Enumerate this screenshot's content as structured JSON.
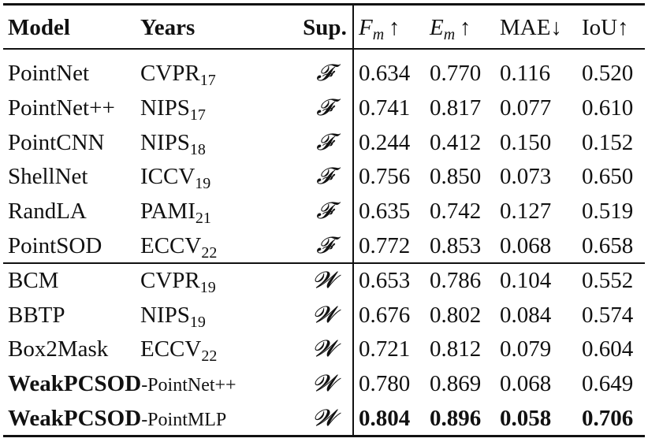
{
  "table": {
    "header": [
      "Model",
      "Years",
      "Sup.",
      {
        "var": "F",
        "sub": "m",
        "arrow": "↑"
      },
      {
        "var": "E",
        "sub": "m",
        "arrow": "↑"
      },
      "MAE↓",
      "IoU↑"
    ],
    "groups": [
      {
        "rows": [
          {
            "model": "PointNet",
            "years": {
              "venue": "CVPR",
              "year": "17"
            },
            "sup": "𝓕",
            "values": [
              "0.634",
              "0.770",
              "0.116",
              "0.520"
            ]
          },
          {
            "model": "PointNet++",
            "years": {
              "venue": "NIPS",
              "year": "17"
            },
            "sup": "𝓕",
            "values": [
              "0.741",
              "0.817",
              "0.077",
              "0.610"
            ]
          },
          {
            "model": "PointCNN",
            "years": {
              "venue": "NIPS",
              "year": "18"
            },
            "sup": "𝓕",
            "values": [
              "0.244",
              "0.412",
              "0.150",
              "0.152"
            ]
          },
          {
            "model": "ShellNet",
            "years": {
              "venue": "ICCV",
              "year": "19"
            },
            "sup": "𝓕",
            "values": [
              "0.756",
              "0.850",
              "0.073",
              "0.650"
            ]
          },
          {
            "model": "RandLA",
            "years": {
              "venue": "PAMI",
              "year": "21"
            },
            "sup": "𝓕",
            "values": [
              "0.635",
              "0.742",
              "0.127",
              "0.519"
            ]
          },
          {
            "model": "PointSOD",
            "years": {
              "venue": "ECCV",
              "year": "22"
            },
            "sup": "𝓕",
            "values": [
              "0.772",
              "0.853",
              "0.068",
              "0.658"
            ]
          }
        ]
      },
      {
        "rows": [
          {
            "model": "BCM",
            "years": {
              "venue": "CVPR",
              "year": "19"
            },
            "sup": "𝓦",
            "values": [
              "0.653",
              "0.786",
              "0.104",
              "0.552"
            ]
          },
          {
            "model": "BBTP",
            "years": {
              "venue": "NIPS",
              "year": "19"
            },
            "sup": "𝓦",
            "values": [
              "0.676",
              "0.802",
              "0.084",
              "0.574"
            ]
          },
          {
            "model": "Box2Mask",
            "years": {
              "venue": "ECCV",
              "year": "22"
            },
            "sup": "𝓦",
            "values": [
              "0.721",
              "0.812",
              "0.079",
              "0.604"
            ]
          },
          {
            "model": {
              "bold": "WeakPCSOD",
              "rest": "-PointNet++"
            },
            "sup": "𝓦",
            "values": [
              "0.780",
              "0.869",
              "0.068",
              "0.649"
            ]
          },
          {
            "model": {
              "bold": "WeakPCSOD",
              "rest": "-PointMLP"
            },
            "sup": "𝓦",
            "values": [
              "0.804",
              "0.896",
              "0.058",
              "0.706"
            ],
            "bold": true
          }
        ]
      }
    ]
  }
}
